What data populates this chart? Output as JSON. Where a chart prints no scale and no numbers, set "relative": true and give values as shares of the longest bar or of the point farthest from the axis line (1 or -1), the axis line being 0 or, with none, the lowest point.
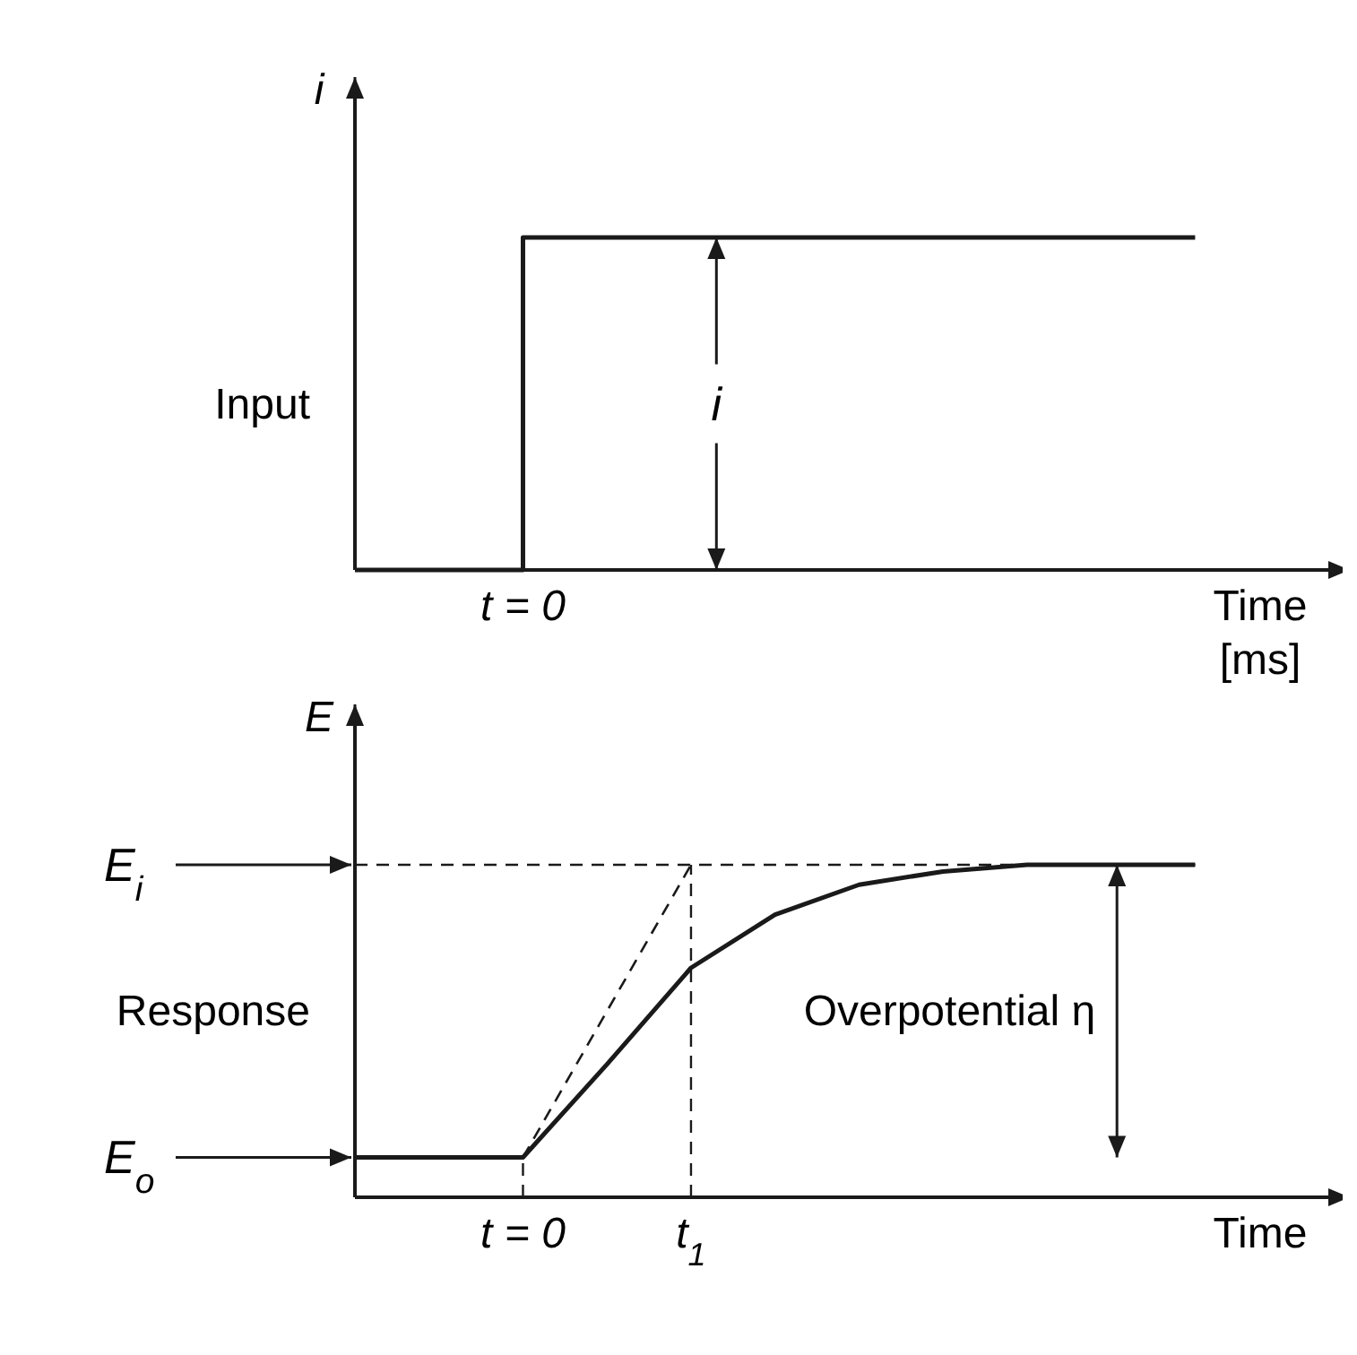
{
  "chart_data": [
    {
      "type": "step",
      "relative": true,
      "ylabel": "i",
      "xlabel": "Time [ms]",
      "categories": [
        null,
        null,
        null,
        null,
        null,
        null
      ],
      "series": [
        {
          "color": "#1a1a1a",
          "values": [
            0,
            1,
            1,
            1,
            1,
            1
          ]
        }
      ],
      "annotations": [
        "Input",
        "i",
        "t = 0"
      ]
    },
    {
      "type": "line",
      "relative": true,
      "ylabel": "E",
      "xlabel": "Time",
      "categories": [
        null,
        null,
        "t = 0",
        null,
        "t$_{1}$",
        null,
        null,
        null,
        null,
        null,
        null
      ],
      "series": [
        {
          "color": "#1a1a1a",
          "values": [
            0.12,
            0.12,
            0.12,
            0.4,
            0.69,
            0.85,
            0.94,
            0.98,
            1,
            1,
            1
          ]
        },
        {
          "color": "#1a1a1a",
          "line_style": "dashed",
          "values": [
            null,
            null,
            0.12,
            0.56,
            1,
            null,
            null,
            null,
            null,
            null,
            null
          ]
        }
      ],
      "ref_lines": [
        {
          "axis": "y",
          "value": 1,
          "line_style": "dashed",
          "color": "#1a1a1a",
          "label": "E$_{i}$"
        }
      ],
      "annotations": [
        "Response",
        "Overpotential η",
        "E$_{o}$"
      ]
    }
  ]
}
